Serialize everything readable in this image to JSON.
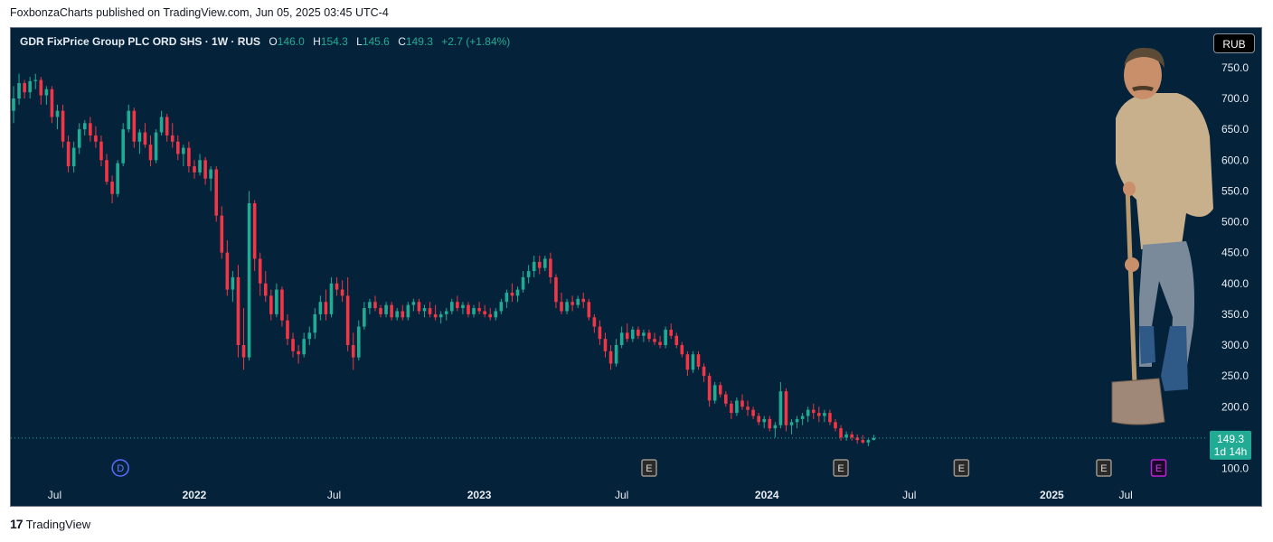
{
  "caption": "FoxbonzaCharts published on TradingView.com, Jun 05, 2025 03:45 UTC-4",
  "legend": {
    "symbol": "GDR FixPrice Group PLC ORD SHS · 1W · RUS",
    "o_label": "O",
    "o_value": "146.0",
    "h_label": "H",
    "h_value": "154.3",
    "l_label": "L",
    "l_value": "145.6",
    "c_label": "C",
    "c_value": "149.3",
    "change": "+2.7 (+1.84%)"
  },
  "currency": "RUB",
  "last_price": {
    "value": "149.3",
    "countdown": "1d 14h"
  },
  "footer": {
    "logo_mark": "17",
    "logo_text": "TradingView"
  },
  "colors": {
    "up": "#22ab94",
    "down": "#f23645",
    "background": "#04233a",
    "axis_text": "#e8ecf2",
    "last_price_bg": "#22ab94"
  },
  "chart_data": {
    "type": "candlestick",
    "interval": "1W",
    "y_axis_side": "right",
    "ylim": [
      60,
      790
    ],
    "yticks": [
      100,
      150,
      200,
      250,
      300,
      350,
      400,
      450,
      500,
      550,
      600,
      650,
      700,
      750
    ],
    "ytick_labels": [
      "100.0",
      "",
      "200.0",
      "250.0",
      "300.0",
      "350.0",
      "400.0",
      "450.0",
      "500.0",
      "550.0",
      "600.0",
      "650.0",
      "700.0",
      "750.0"
    ],
    "x_labels": [
      "Jul",
      "2022",
      "Jul",
      "2023",
      "Jul",
      "2024",
      "Jul",
      "2025",
      "Jul"
    ],
    "x_label_bars": [
      7.5,
      33,
      58.5,
      85,
      111,
      137.5,
      163.5,
      189.5,
      203
    ],
    "grid": false,
    "events": [
      {
        "label": "D",
        "bar": 19.5,
        "kind": "dividend"
      },
      {
        "label": "E",
        "bar": 116,
        "kind": "earnings"
      },
      {
        "label": "E",
        "bar": 151,
        "kind": "earnings"
      },
      {
        "label": "E",
        "bar": 173,
        "kind": "earnings"
      },
      {
        "label": "E",
        "bar": 199,
        "kind": "earnings"
      },
      {
        "label": "E",
        "bar": 209,
        "kind": "earnings-upcoming"
      }
    ],
    "last_price": 149.3,
    "candles": [
      [
        680,
        720,
        660,
        700
      ],
      [
        700,
        740,
        690,
        725
      ],
      [
        725,
        730,
        700,
        710
      ],
      [
        710,
        735,
        700,
        728
      ],
      [
        728,
        740,
        715,
        730
      ],
      [
        730,
        735,
        690,
        705
      ],
      [
        705,
        720,
        690,
        715
      ],
      [
        715,
        720,
        660,
        670
      ],
      [
        670,
        690,
        650,
        680
      ],
      [
        680,
        690,
        620,
        630
      ],
      [
        630,
        640,
        580,
        590
      ],
      [
        590,
        630,
        580,
        620
      ],
      [
        620,
        660,
        610,
        650
      ],
      [
        650,
        665,
        640,
        660
      ],
      [
        660,
        670,
        630,
        640
      ],
      [
        640,
        655,
        620,
        630
      ],
      [
        630,
        640,
        590,
        600
      ],
      [
        600,
        610,
        560,
        565
      ],
      [
        565,
        575,
        530,
        545
      ],
      [
        545,
        600,
        540,
        595
      ],
      [
        595,
        660,
        590,
        650
      ],
      [
        650,
        690,
        645,
        680
      ],
      [
        680,
        685,
        620,
        630
      ],
      [
        630,
        650,
        610,
        645
      ],
      [
        645,
        660,
        620,
        625
      ],
      [
        625,
        640,
        590,
        600
      ],
      [
        600,
        650,
        595,
        645
      ],
      [
        645,
        680,
        640,
        670
      ],
      [
        670,
        675,
        630,
        640
      ],
      [
        640,
        660,
        620,
        630
      ],
      [
        630,
        640,
        600,
        610
      ],
      [
        610,
        625,
        590,
        620
      ],
      [
        620,
        630,
        580,
        590
      ],
      [
        590,
        600,
        570,
        580
      ],
      [
        580,
        610,
        575,
        600
      ],
      [
        600,
        605,
        560,
        570
      ],
      [
        570,
        590,
        550,
        585
      ],
      [
        585,
        590,
        500,
        510
      ],
      [
        510,
        525,
        440,
        450
      ],
      [
        450,
        470,
        380,
        390
      ],
      [
        390,
        420,
        370,
        410
      ],
      [
        410,
        430,
        280,
        300
      ],
      [
        300,
        360,
        260,
        280
      ],
      [
        280,
        550,
        275,
        530
      ],
      [
        530,
        535,
        420,
        440
      ],
      [
        440,
        450,
        380,
        400
      ],
      [
        400,
        420,
        370,
        380
      ],
      [
        380,
        390,
        340,
        350
      ],
      [
        350,
        400,
        345,
        390
      ],
      [
        390,
        395,
        330,
        340
      ],
      [
        340,
        350,
        300,
        310
      ],
      [
        310,
        320,
        280,
        290
      ],
      [
        290,
        300,
        270,
        285
      ],
      [
        285,
        320,
        280,
        310
      ],
      [
        310,
        330,
        300,
        320
      ],
      [
        320,
        360,
        310,
        350
      ],
      [
        350,
        380,
        340,
        370
      ],
      [
        370,
        390,
        340,
        350
      ],
      [
        350,
        410,
        345,
        400
      ],
      [
        400,
        410,
        380,
        390
      ],
      [
        390,
        405,
        370,
        380
      ],
      [
        380,
        410,
        290,
        300
      ],
      [
        300,
        320,
        260,
        280
      ],
      [
        280,
        340,
        275,
        330
      ],
      [
        330,
        370,
        325,
        360
      ],
      [
        360,
        375,
        350,
        370
      ],
      [
        370,
        380,
        355,
        360
      ],
      [
        360,
        365,
        345,
        350
      ],
      [
        350,
        370,
        345,
        365
      ],
      [
        365,
        370,
        340,
        345
      ],
      [
        345,
        360,
        340,
        355
      ],
      [
        355,
        365,
        340,
        345
      ],
      [
        345,
        370,
        340,
        365
      ],
      [
        365,
        375,
        355,
        370
      ],
      [
        370,
        375,
        350,
        355
      ],
      [
        355,
        365,
        345,
        360
      ],
      [
        360,
        370,
        345,
        350
      ],
      [
        350,
        365,
        340,
        345
      ],
      [
        345,
        355,
        335,
        350
      ],
      [
        350,
        360,
        340,
        355
      ],
      [
        355,
        375,
        350,
        370
      ],
      [
        370,
        380,
        355,
        360
      ],
      [
        360,
        370,
        350,
        365
      ],
      [
        365,
        370,
        345,
        350
      ],
      [
        350,
        365,
        345,
        360
      ],
      [
        360,
        370,
        350,
        355
      ],
      [
        355,
        365,
        345,
        350
      ],
      [
        350,
        360,
        340,
        345
      ],
      [
        345,
        360,
        340,
        355
      ],
      [
        355,
        375,
        350,
        370
      ],
      [
        370,
        390,
        360,
        385
      ],
      [
        385,
        400,
        370,
        380
      ],
      [
        380,
        395,
        370,
        390
      ],
      [
        390,
        420,
        385,
        410
      ],
      [
        410,
        430,
        400,
        420
      ],
      [
        420,
        445,
        410,
        435
      ],
      [
        435,
        445,
        415,
        425
      ],
      [
        425,
        445,
        420,
        440
      ],
      [
        440,
        450,
        400,
        410
      ],
      [
        410,
        415,
        360,
        370
      ],
      [
        370,
        385,
        350,
        355
      ],
      [
        355,
        375,
        350,
        370
      ],
      [
        370,
        380,
        355,
        365
      ],
      [
        365,
        380,
        360,
        375
      ],
      [
        375,
        385,
        360,
        370
      ],
      [
        370,
        375,
        340,
        345
      ],
      [
        345,
        350,
        320,
        330
      ],
      [
        330,
        340,
        300,
        310
      ],
      [
        310,
        320,
        280,
        290
      ],
      [
        290,
        300,
        260,
        270
      ],
      [
        270,
        310,
        265,
        300
      ],
      [
        300,
        330,
        295,
        320
      ],
      [
        320,
        335,
        305,
        310
      ],
      [
        310,
        330,
        305,
        325
      ],
      [
        325,
        330,
        310,
        315
      ],
      [
        315,
        325,
        305,
        320
      ],
      [
        320,
        325,
        305,
        310
      ],
      [
        310,
        320,
        300,
        305
      ],
      [
        305,
        315,
        295,
        300
      ],
      [
        300,
        330,
        295,
        325
      ],
      [
        325,
        335,
        310,
        315
      ],
      [
        315,
        320,
        295,
        300
      ],
      [
        300,
        305,
        280,
        285
      ],
      [
        285,
        290,
        250,
        260
      ],
      [
        260,
        290,
        255,
        285
      ],
      [
        285,
        290,
        260,
        265
      ],
      [
        265,
        270,
        240,
        250
      ],
      [
        250,
        255,
        200,
        210
      ],
      [
        210,
        240,
        205,
        235
      ],
      [
        235,
        240,
        215,
        220
      ],
      [
        220,
        225,
        200,
        205
      ],
      [
        205,
        210,
        180,
        190
      ],
      [
        190,
        215,
        185,
        210
      ],
      [
        210,
        220,
        195,
        200
      ],
      [
        200,
        210,
        185,
        195
      ],
      [
        195,
        200,
        180,
        185
      ],
      [
        185,
        190,
        170,
        175
      ],
      [
        175,
        185,
        165,
        180
      ],
      [
        180,
        185,
        160,
        165
      ],
      [
        165,
        175,
        150,
        170
      ],
      [
        170,
        240,
        165,
        225
      ],
      [
        225,
        230,
        160,
        170
      ],
      [
        170,
        180,
        155,
        175
      ],
      [
        175,
        185,
        165,
        180
      ],
      [
        180,
        190,
        170,
        185
      ],
      [
        185,
        200,
        175,
        195
      ],
      [
        195,
        205,
        180,
        190
      ],
      [
        190,
        200,
        175,
        185
      ],
      [
        185,
        195,
        175,
        190
      ],
      [
        190,
        195,
        170,
        175
      ],
      [
        175,
        180,
        160,
        165
      ],
      [
        165,
        170,
        145,
        150
      ],
      [
        150,
        160,
        145,
        155
      ],
      [
        155,
        160,
        145,
        150
      ],
      [
        150,
        155,
        140,
        146
      ],
      [
        146,
        154,
        140,
        142
      ],
      [
        142,
        148,
        136,
        146
      ],
      [
        146,
        154.3,
        145.6,
        149.3
      ]
    ]
  }
}
